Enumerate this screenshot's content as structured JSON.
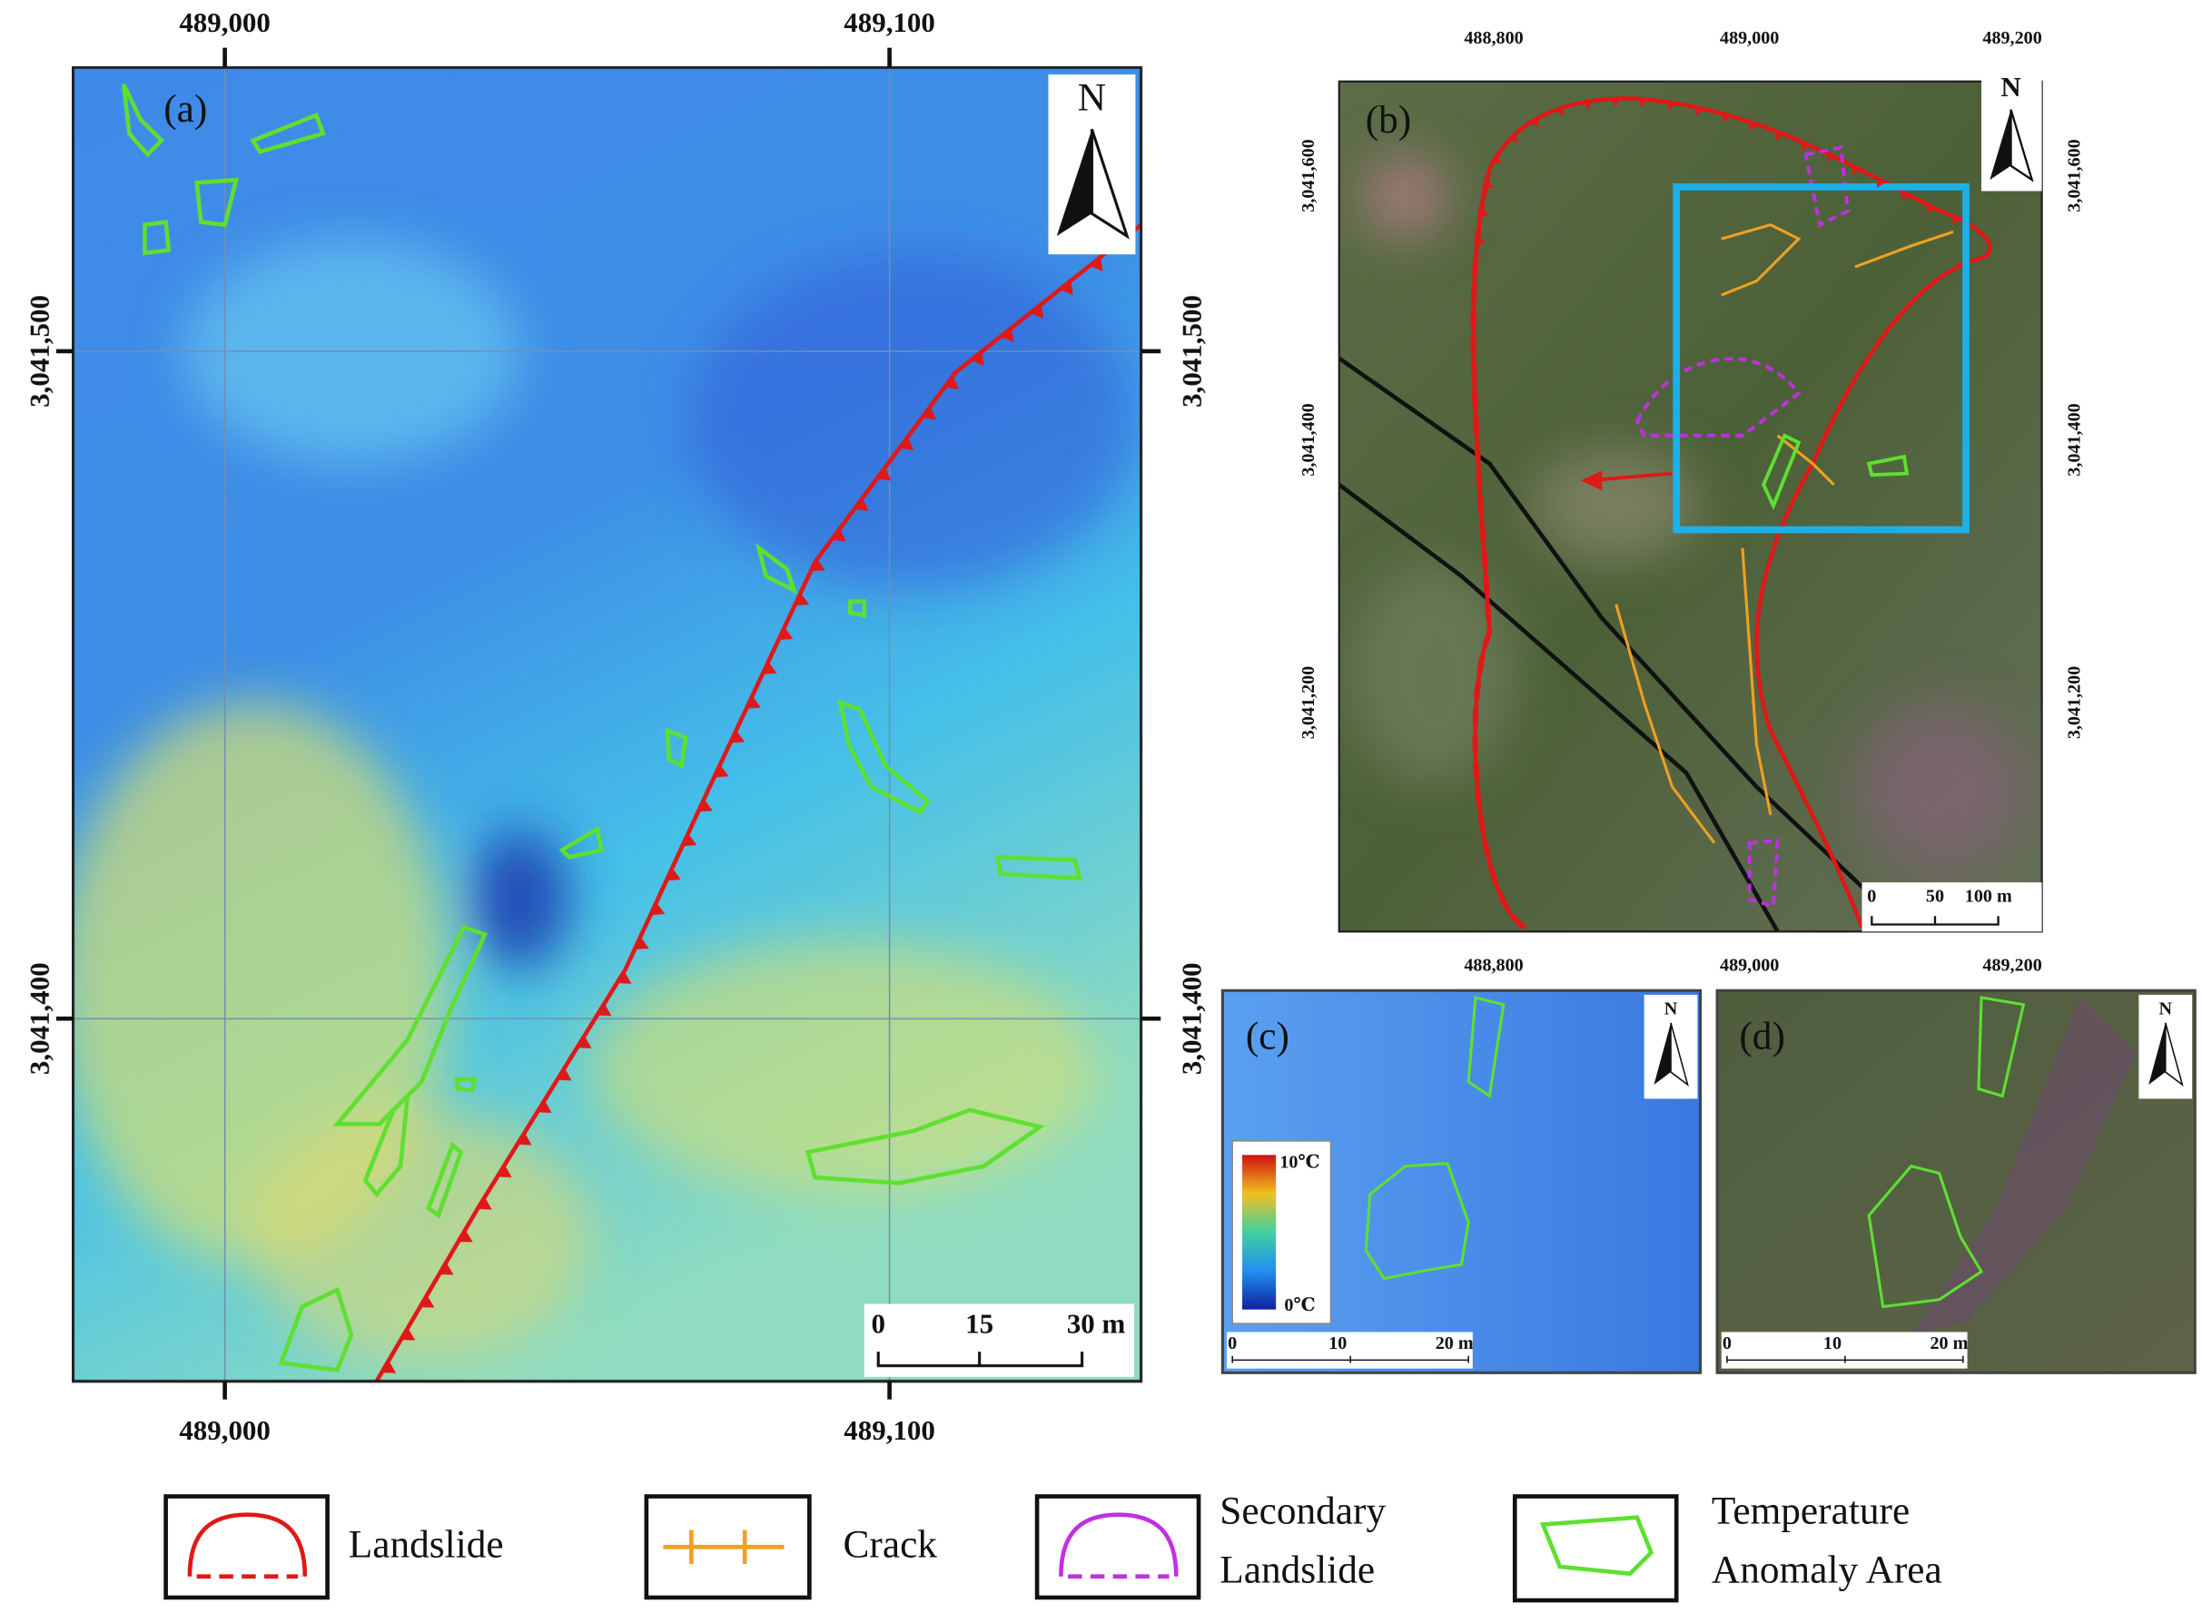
{
  "panels": [
    {
      "label": "(a)",
      "north": "N",
      "top_ticks": [
        "489,000",
        "489,100"
      ],
      "bottom_ticks": [
        "489,000",
        "489,100"
      ],
      "left_ticks": [
        "3,041,500",
        "3,041,400"
      ],
      "right_ticks": [
        "3,041,500",
        "3,041,400"
      ],
      "scale": [
        "0",
        "15",
        "30 m"
      ]
    },
    {
      "label": "(b)",
      "north": "N",
      "top_ticks": [
        "488,800",
        "489,000",
        "489,200"
      ],
      "bottom_ticks": [
        "488,800",
        "489,000",
        "489,200"
      ],
      "left_ticks": [
        "3,041,600",
        "3,041,400",
        "3,041,200"
      ],
      "right_ticks": [
        "3,041,600",
        "3,041,400",
        "3,041,200"
      ],
      "scale": [
        "0",
        "50",
        "100 m"
      ]
    },
    {
      "label": "(c)",
      "north": "N",
      "colorbar": [
        "10℃",
        "0℃"
      ],
      "scale": [
        "0",
        "10",
        "20 m"
      ]
    },
    {
      "label": "(d)",
      "north": "N",
      "scale": [
        "0",
        "10",
        "20 m"
      ]
    }
  ],
  "legend": [
    {
      "lines": [
        "Landslide"
      ]
    },
    {
      "lines": [
        "Crack"
      ]
    },
    {
      "lines": [
        "Secondary",
        "Landslide"
      ]
    },
    {
      "lines": [
        "Temperature",
        "Anomaly Area"
      ]
    }
  ]
}
